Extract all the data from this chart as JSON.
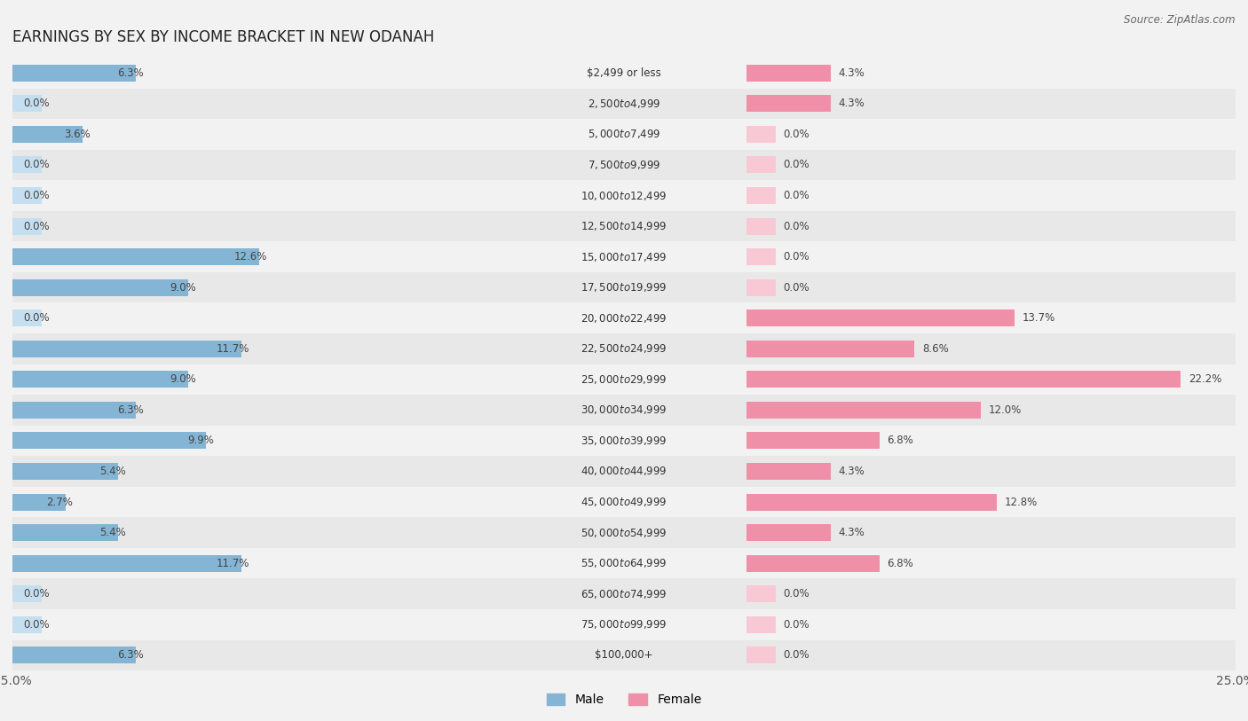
{
  "title": "EARNINGS BY SEX BY INCOME BRACKET IN NEW ODANAH",
  "source": "Source: ZipAtlas.com",
  "categories": [
    "$2,499 or less",
    "$2,500 to $4,999",
    "$5,000 to $7,499",
    "$7,500 to $9,999",
    "$10,000 to $12,499",
    "$12,500 to $14,999",
    "$15,000 to $17,499",
    "$17,500 to $19,999",
    "$20,000 to $22,499",
    "$22,500 to $24,999",
    "$25,000 to $29,999",
    "$30,000 to $34,999",
    "$35,000 to $39,999",
    "$40,000 to $44,999",
    "$45,000 to $49,999",
    "$50,000 to $54,999",
    "$55,000 to $64,999",
    "$65,000 to $74,999",
    "$75,000 to $99,999",
    "$100,000+"
  ],
  "male_values": [
    6.3,
    0.0,
    3.6,
    0.0,
    0.0,
    0.0,
    12.6,
    9.0,
    0.0,
    11.7,
    9.0,
    6.3,
    9.9,
    5.4,
    2.7,
    5.4,
    11.7,
    0.0,
    0.0,
    6.3
  ],
  "female_values": [
    4.3,
    4.3,
    0.0,
    0.0,
    0.0,
    0.0,
    0.0,
    0.0,
    13.7,
    8.6,
    22.2,
    12.0,
    6.8,
    4.3,
    12.8,
    4.3,
    6.8,
    0.0,
    0.0,
    0.0
  ],
  "male_color": "#85b5d5",
  "female_color": "#f090a8",
  "male_bg": "#c5dff0",
  "female_bg": "#f8c8d4",
  "xlim": 25.0,
  "row_colors": [
    "#f2f2f2",
    "#e8e8e8"
  ],
  "label_min_bar": 1.5,
  "bar_height": 0.55,
  "label_fontsize": 8.5,
  "val_fontsize": 8.5
}
